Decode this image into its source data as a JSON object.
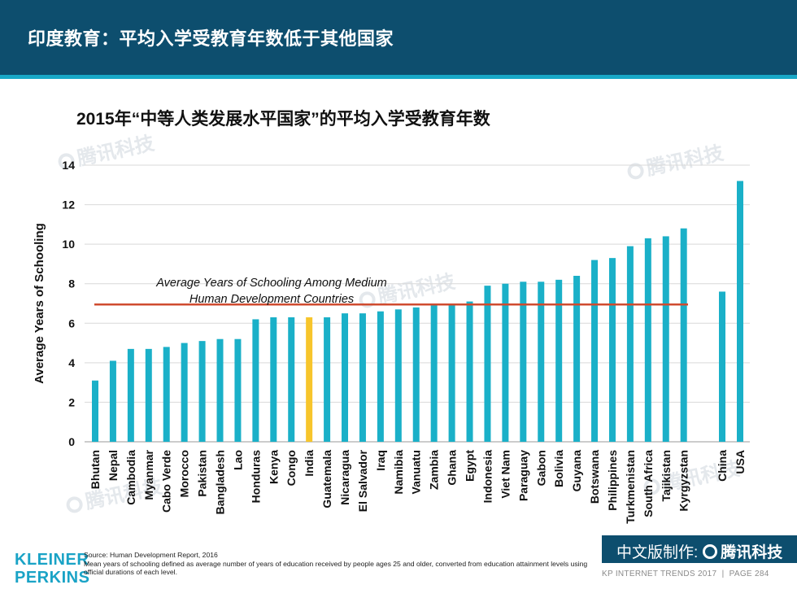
{
  "header": {
    "title": "印度教育：平均入学受教育年数低于其他国家"
  },
  "watermark": {
    "text": "腾讯科技"
  },
  "chart_data": {
    "type": "bar",
    "title": "2015年“中等人类发展水平国家”的平均入学受教育年数",
    "xlabel": "",
    "ylabel": "Average Years of Schooling",
    "ylim": [
      0,
      14
    ],
    "yticks": [
      0,
      2,
      4,
      6,
      8,
      10,
      12,
      14
    ],
    "grid": true,
    "categories": [
      "Bhutan",
      "Nepal",
      "Cambodia",
      "Myanmar",
      "Cabo Verde",
      "Morocco",
      "Pakistan",
      "Bangladesh",
      "Lao",
      "Honduras",
      "Kenya",
      "Congo",
      "India",
      "Guatemala",
      "Nicaragua",
      "El Salvador",
      "Iraq",
      "Namibia",
      "Vanuatu",
      "Zambia",
      "Ghana",
      "Egypt",
      "Indonesia",
      "Viet Nam",
      "Paraguay",
      "Gabon",
      "Bolivia",
      "Guyana",
      "Botswana",
      "Philippines",
      "Turkmenistan",
      "South Africa",
      "Tajikistan",
      "Kyrgyzstan",
      "China",
      "USA"
    ],
    "values": [
      3.1,
      4.1,
      4.7,
      4.7,
      4.8,
      5.0,
      5.1,
      5.2,
      5.2,
      6.2,
      6.3,
      6.3,
      6.3,
      6.3,
      6.5,
      6.5,
      6.6,
      6.7,
      6.8,
      6.9,
      6.9,
      7.1,
      7.9,
      8.0,
      8.1,
      8.1,
      8.2,
      8.4,
      9.2,
      9.3,
      9.9,
      10.3,
      10.4,
      10.8,
      7.6,
      13.2
    ],
    "highlight": "India",
    "colors": {
      "bar": "#1ab0c8",
      "highlight": "#f7c52b",
      "reference_line": "#cf4b2f",
      "gridline": "#d9d9d9"
    },
    "reference_line": {
      "value": 6.95,
      "label_line1": "Average Years of Schooling Among Medium",
      "label_line2": "Human Development Countries"
    }
  },
  "footer": {
    "source": "Source: Human Development Report, 2016",
    "note": "Mean years of schooling defined as average number of years of education received by people ages 25 and older, converted from education attainment levels using official durations of each level.",
    "logo_line1": "KLEINER",
    "logo_line2": "PERKINS",
    "badge_text": "中文版制作:",
    "badge_brand": "腾讯科技",
    "trends": "KP INTERNET TRENDS 2017",
    "page": "PAGE 284"
  }
}
